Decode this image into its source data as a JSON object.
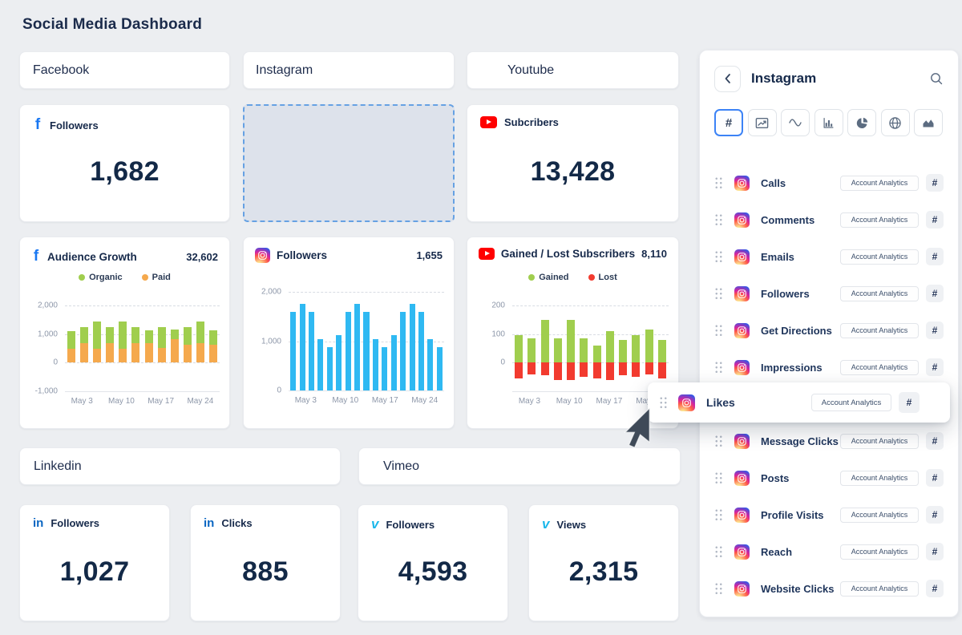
{
  "title": "Social Media Dashboard",
  "sections": {
    "facebook": "Facebook",
    "instagram": "Instagram",
    "youtube": "Youtube",
    "linkedin": "Linkedin",
    "vimeo": "Vimeo"
  },
  "stats": {
    "fb_followers": {
      "label": "Followers",
      "value": "1,682"
    },
    "yt_subscribers": {
      "label": "Subcribers",
      "value": "13,428"
    },
    "li_followers": {
      "label": "Followers",
      "value": "1,027"
    },
    "li_clicks": {
      "label": "Clicks",
      "value": "885"
    },
    "vimeo_followers": {
      "label": "Followers",
      "value": "4,593"
    },
    "vimeo_views": {
      "label": "Views",
      "value": "2,315"
    }
  },
  "chart_data": [
    {
      "type": "bar",
      "stacked": true,
      "platform": "facebook",
      "title": "Audience Growth",
      "total": "32,602",
      "legend": [
        {
          "label": "Organic",
          "color": "#a0ce4e"
        },
        {
          "label": "Paid",
          "color": "#f5a94d"
        }
      ],
      "ylim": [
        -1000,
        2000
      ],
      "gridlines": [
        {
          "v": 2000,
          "label": "2,000"
        },
        {
          "v": 1000,
          "label": "1,000"
        },
        {
          "v": 0,
          "label": "0"
        },
        {
          "v": -1000,
          "label": "-1,000"
        }
      ],
      "x_ticks": [
        "May 3",
        "May 10",
        "May 17",
        "May 24"
      ],
      "series": [
        {
          "name": "Paid",
          "color": "#f5a94d",
          "values": [
            480,
            690,
            480,
            690,
            480,
            690,
            690,
            520,
            830,
            620,
            690,
            620
          ]
        },
        {
          "name": "Organic",
          "color": "#a0ce4e",
          "values": [
            620,
            560,
            970,
            560,
            970,
            560,
            440,
            730,
            330,
            630,
            750,
            510
          ]
        }
      ]
    },
    {
      "type": "bar",
      "stacked": false,
      "platform": "instagram",
      "title": "Followers",
      "total": "1,655",
      "ylim": [
        0,
        2000
      ],
      "gridlines": [
        {
          "v": 2000,
          "label": "2,000"
        },
        {
          "v": 1000,
          "label": "1,000"
        },
        {
          "v": 0,
          "label": "0"
        }
      ],
      "x_ticks": [
        "May 3",
        "May 10",
        "May 17",
        "May 24"
      ],
      "series": [
        {
          "name": "Followers",
          "color": "#2fb9f2",
          "values": [
            1600,
            1750,
            1600,
            1040,
            880,
            1130,
            1600,
            1750,
            1600,
            1040,
            880,
            1130,
            1600,
            1750,
            1600,
            1040,
            880
          ]
        }
      ]
    },
    {
      "type": "bar",
      "stacked": true,
      "platform": "youtube",
      "title": "Gained / Lost Subscribers",
      "total": "8,110",
      "legend": [
        {
          "label": "Gained",
          "color": "#a0ce4e"
        },
        {
          "label": "Lost",
          "color": "#f23b2f"
        }
      ],
      "ylim": [
        -100,
        200
      ],
      "gridlines": [
        {
          "v": 200,
          "label": "200"
        },
        {
          "v": 100,
          "label": "100"
        },
        {
          "v": 0,
          "label": "0"
        },
        {
          "v": -100,
          "label": ""
        }
      ],
      "x_ticks": [
        "May 3",
        "May 10",
        "May 17",
        "May 24"
      ],
      "series": [
        {
          "name": "Gained",
          "color": "#a0ce4e",
          "values": [
            95,
            85,
            150,
            85,
            150,
            85,
            60,
            110,
            80,
            95,
            115,
            80
          ]
        },
        {
          "name": "Lost",
          "color": "#f23b2f",
          "values": [
            -55,
            -40,
            -45,
            -60,
            -60,
            -50,
            -55,
            -60,
            -45,
            -50,
            -40,
            -55
          ]
        }
      ]
    }
  ],
  "sidebar": {
    "title": "Instagram",
    "toolbar": {
      "selected": 0,
      "icons": [
        "number",
        "line-chart",
        "wave",
        "column-chart",
        "pie-chart",
        "globe",
        "area-chart"
      ]
    },
    "badge_label": "Account Analytics",
    "hash_label": "#",
    "items": [
      "Calls",
      "Comments",
      "Emails",
      "Followers",
      "Get Directions",
      "Impressions",
      "Likes",
      "Message Clicks",
      "Posts",
      "Profile Visits",
      "Reach",
      "Website Clicks"
    ],
    "dragged_item": "Likes"
  },
  "colors": {
    "accent_blue": "#3c83f6",
    "facebook": "#1877f2",
    "youtube": "#ff0000",
    "linkedin": "#0a66c2",
    "vimeo": "#1ab7ea",
    "instagram_bar": "#2fb9f2",
    "organic_green": "#a0ce4e",
    "paid_orange": "#f5a94d",
    "lost_red": "#f23b2f",
    "placeholder_border": "#66a1e3",
    "text_dark": "#15294a"
  }
}
